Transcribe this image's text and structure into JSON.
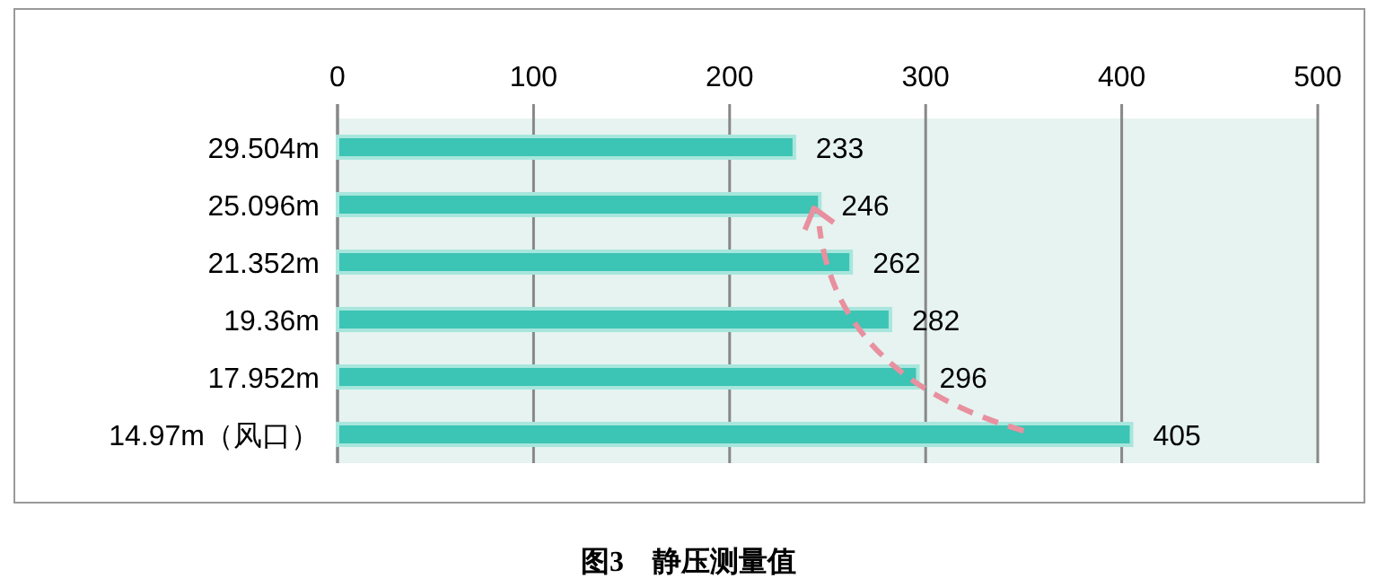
{
  "chart_data": {
    "type": "bar",
    "orientation": "horizontal",
    "title": "图3　静压测量值",
    "categories": [
      "29.504m",
      "25.096m",
      "21.352m",
      "19.36m",
      "17.952m",
      "14.97m（风口）"
    ],
    "values": [
      233,
      246,
      262,
      282,
      296,
      405
    ],
    "color": "#3cc4b4",
    "xlim": [
      0,
      500
    ],
    "xticks": [
      0,
      100,
      200,
      300,
      400,
      500
    ],
    "grid": "x",
    "data_labels": true
  }
}
